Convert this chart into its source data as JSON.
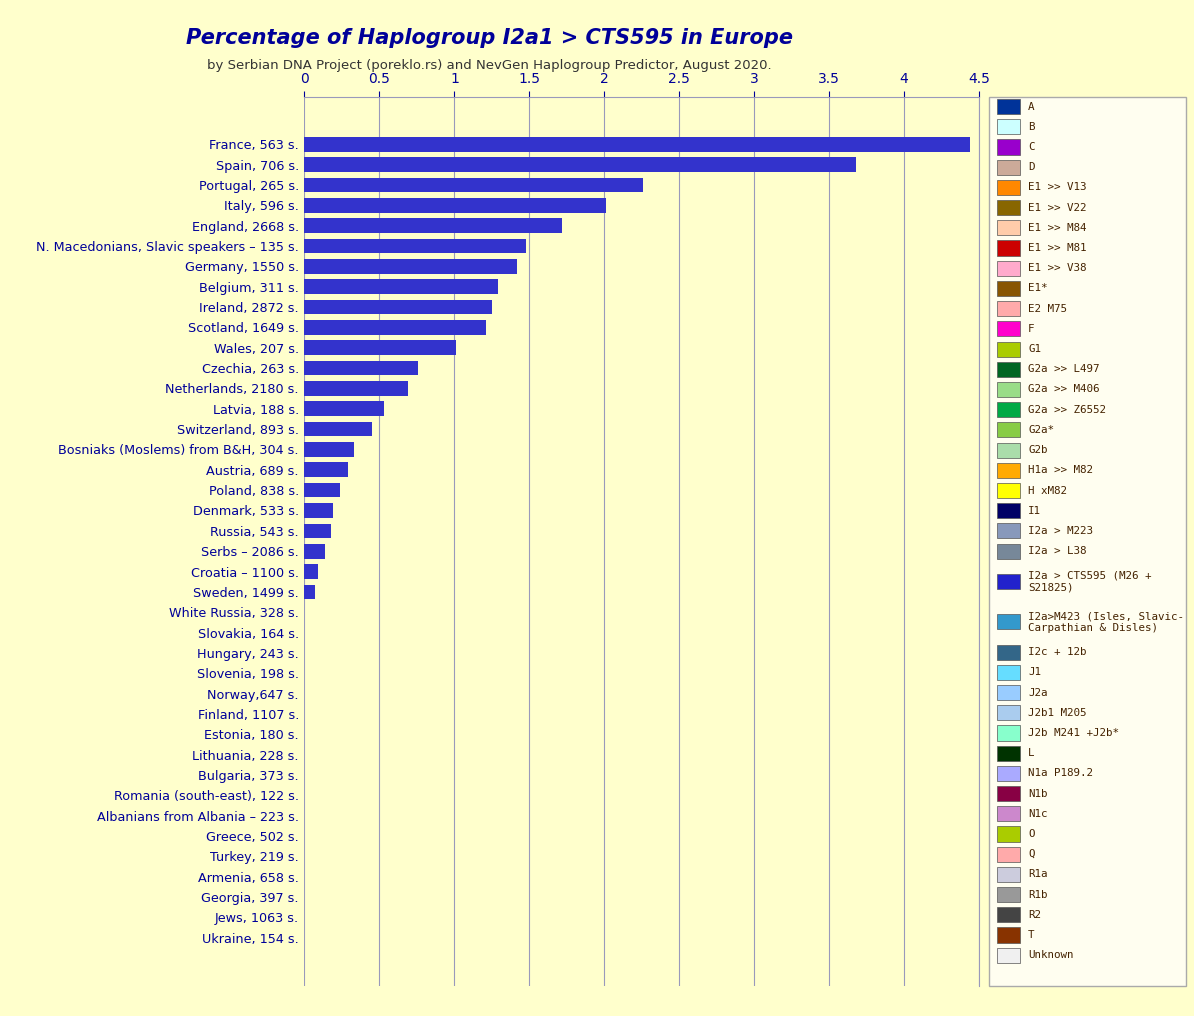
{
  "title": "Percentage of Haplogroup I2a1 > CTS595 in Europe",
  "subtitle": "by Serbian DNA Project (poreklo.rs) and NevGen Haplogroup Predictor, August 2020.",
  "categories": [
    "France, 563 s.",
    "Spain, 706 s.",
    "Portugal, 265 s.",
    "Italy, 596 s.",
    "England, 2668 s.",
    "N. Macedonians, Slavic speakers – 135 s.",
    "Germany, 1550 s.",
    "Belgium, 311 s.",
    "Ireland, 2872 s.",
    "Scotland, 1649 s.",
    "Wales, 207 s.",
    "Czechia, 263 s.",
    "Netherlands, 2180 s.",
    "Latvia, 188 s.",
    "Switzerland, 893 s.",
    "Bosniaks (Moslems) from B&H, 304 s.",
    "Austria, 689 s.",
    "Poland, 838 s.",
    "Denmark, 533 s.",
    "Russia, 543 s.",
    "Serbs – 2086 s.",
    "Croatia – 1100 s.",
    "Sweden, 1499 s.",
    "White Russia, 328 s.",
    "Slovakia, 164 s.",
    "Hungary, 243 s.",
    "Slovenia, 198 s.",
    "Norway,647 s.",
    "Finland, 1107 s.",
    "Estonia, 180 s.",
    "Lithuania, 228 s.",
    "Bulgaria, 373 s.",
    "Romania (south-east), 122 s.",
    "Albanians from Albania – 223 s.",
    "Greece, 502 s.",
    "Turkey, 219 s.",
    "Armenia, 658 s.",
    "Georgia, 397 s.",
    "Jews, 1063 s.",
    "Ukraine, 154 s."
  ],
  "values": [
    4.44,
    3.68,
    2.26,
    2.01,
    1.72,
    1.48,
    1.42,
    1.29,
    1.25,
    1.21,
    1.01,
    0.76,
    0.69,
    0.53,
    0.45,
    0.33,
    0.29,
    0.24,
    0.19,
    0.18,
    0.14,
    0.09,
    0.07,
    0.0,
    0.0,
    0.0,
    0.0,
    0.0,
    0.0,
    0.0,
    0.0,
    0.0,
    0.0,
    0.0,
    0.0,
    0.0,
    0.0,
    0.0,
    0.0,
    0.0
  ],
  "bar_color": "#3333cc",
  "background_color": "#ffffcc",
  "title_color": "#000099",
  "subtitle_color": "#333333",
  "tick_label_color": "#000099",
  "xlim": [
    0,
    4.5
  ],
  "xticks": [
    0,
    0.5,
    1.0,
    1.5,
    2.0,
    2.5,
    3.0,
    3.5,
    4.0,
    4.5
  ],
  "grid_color": "#9999bb",
  "legend_items": [
    {
      "label": "A",
      "color": "#003399"
    },
    {
      "label": "B",
      "color": "#ccffff"
    },
    {
      "label": "C",
      "color": "#9900cc"
    },
    {
      "label": "D",
      "color": "#ccaa99"
    },
    {
      "label": "E1 >> V13",
      "color": "#ff8800"
    },
    {
      "label": "E1 >> V22",
      "color": "#886600"
    },
    {
      "label": "E1 >> M84",
      "color": "#ffccaa"
    },
    {
      "label": "E1 >> M81",
      "color": "#cc0000"
    },
    {
      "label": "E1 >> V38",
      "color": "#ffaacc"
    },
    {
      "label": "E1*",
      "color": "#885500"
    },
    {
      "label": "E2 M75",
      "color": "#ffaaaa"
    },
    {
      "label": "F",
      "color": "#ff00cc"
    },
    {
      "label": "G1",
      "color": "#aacc00"
    },
    {
      "label": "G2a >> L497",
      "color": "#006622"
    },
    {
      "label": "G2a >> M406",
      "color": "#99dd88"
    },
    {
      "label": "G2a >> Z6552",
      "color": "#00aa44"
    },
    {
      "label": "G2a*",
      "color": "#88cc44"
    },
    {
      "label": "G2b",
      "color": "#aaddaa"
    },
    {
      "label": "H1a >> M82",
      "color": "#ffaa00"
    },
    {
      "label": "H xM82",
      "color": "#ffff00"
    },
    {
      "label": "I1",
      "color": "#000066"
    },
    {
      "label": "I2a > M223",
      "color": "#8899bb"
    },
    {
      "label": "I2a > L38",
      "color": "#778899"
    },
    {
      "label": "I2a > CTS595 (M26 +\nS21825)",
      "color": "#2222cc"
    },
    {
      "label": "I2a>M423 (Isles, Slavic-\nCarpathian & Disles)",
      "color": "#3399cc"
    },
    {
      "label": "I2c + 12b",
      "color": "#336688"
    },
    {
      "label": "J1",
      "color": "#66ddff"
    },
    {
      "label": "J2a",
      "color": "#99ccff"
    },
    {
      "label": "J2b1 M205",
      "color": "#aaccee"
    },
    {
      "label": "J2b M241 +J2b*",
      "color": "#88ffcc"
    },
    {
      "label": "L",
      "color": "#003300"
    },
    {
      "label": "N1a P189.2",
      "color": "#aaaaff"
    },
    {
      "label": "N1b",
      "color": "#880044"
    },
    {
      "label": "N1c",
      "color": "#cc88cc"
    },
    {
      "label": "O",
      "color": "#aacc00"
    },
    {
      "label": "Q",
      "color": "#ffaaaa"
    },
    {
      "label": "R1a",
      "color": "#ccccdd"
    },
    {
      "label": "R1b",
      "color": "#999999"
    },
    {
      "label": "R2",
      "color": "#444444"
    },
    {
      "label": "T",
      "color": "#883300"
    },
    {
      "label": "Unknown",
      "color": "#f0f0f0"
    }
  ]
}
